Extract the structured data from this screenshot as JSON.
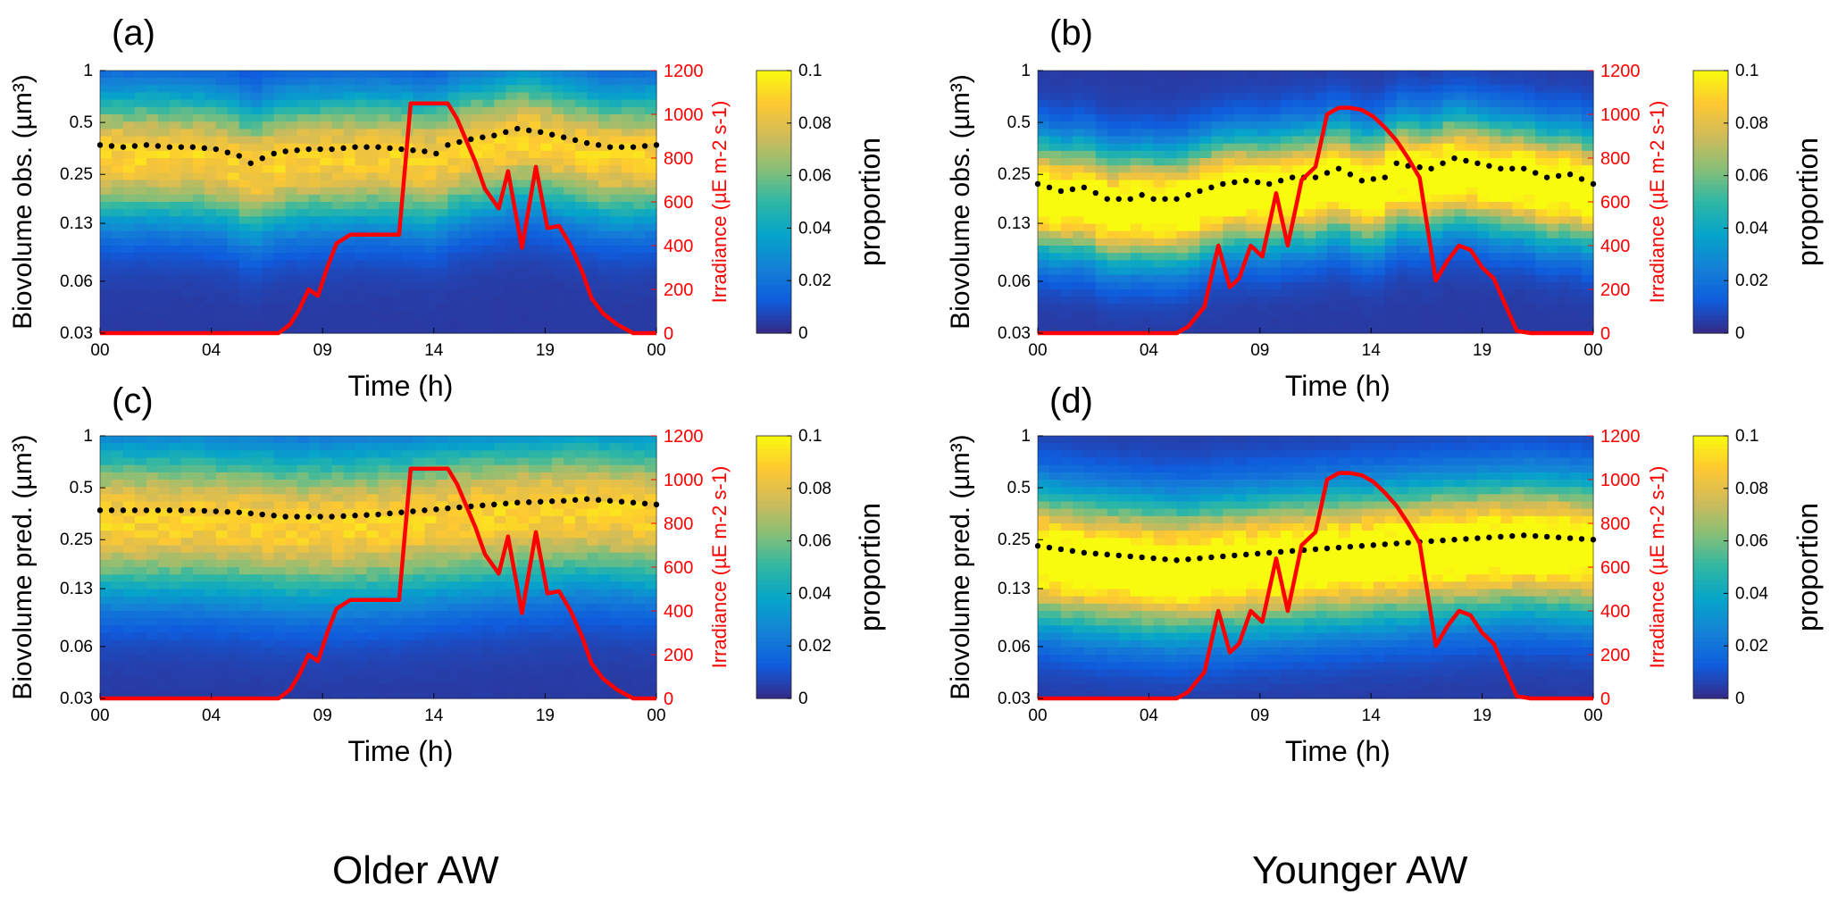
{
  "figure": {
    "left_caption": "Older AW",
    "right_caption": "Younger AW"
  },
  "colors": {
    "irradiance": "#ff0000",
    "dots": "#000000",
    "text": "#000000",
    "colormap": [
      "#352a87",
      "#0f5cdd",
      "#1481d6",
      "#06a4ca",
      "#2eb7a4",
      "#87bf77",
      "#d1bb59",
      "#fec832",
      "#f9fb0e"
    ]
  },
  "chart_data": [
    {
      "panel": "(a)",
      "type": "heatmap",
      "ylabel": "Biovolume obs. (µm³)",
      "xlabel": "Time (h)",
      "x_ticks": [
        "00",
        "04",
        "09",
        "14",
        "19",
        "00"
      ],
      "y_ticks": [
        "1",
        "0.5",
        "0.25",
        "0.13",
        "0.06",
        "0.03"
      ],
      "y2label": "Irradiance (µE m-2 s-1)",
      "y2_ticks": [
        "1200",
        "1000",
        "800",
        "600",
        "400",
        "200",
        "0"
      ],
      "y2lim": [
        0,
        1200
      ],
      "colorbar_label": "proportion",
      "colorbar_ticks": [
        "0.1",
        "0.08",
        "0.06",
        "0.04",
        "0.02",
        "0"
      ],
      "colorbar_range": [
        0,
        0.1
      ],
      "peak_value": 0.085,
      "band_width": 0.26,
      "mean_biovolume": [
        [
          0,
          0.37
        ],
        [
          1,
          0.36
        ],
        [
          2,
          0.37
        ],
        [
          3,
          0.36
        ],
        [
          4,
          0.36
        ],
        [
          5,
          0.35
        ],
        [
          6,
          0.32
        ],
        [
          6.5,
          0.29
        ],
        [
          7,
          0.31
        ],
        [
          7.5,
          0.33
        ],
        [
          8,
          0.34
        ],
        [
          9,
          0.35
        ],
        [
          10,
          0.35
        ],
        [
          11,
          0.36
        ],
        [
          12,
          0.36
        ],
        [
          13,
          0.35
        ],
        [
          14,
          0.34
        ],
        [
          14.5,
          0.33
        ],
        [
          15,
          0.37
        ],
        [
          16,
          0.4
        ],
        [
          17,
          0.42
        ],
        [
          18,
          0.46
        ],
        [
          19,
          0.44
        ],
        [
          20,
          0.41
        ],
        [
          21,
          0.38
        ],
        [
          22,
          0.36
        ],
        [
          23,
          0.36
        ],
        [
          24,
          0.37
        ]
      ],
      "irradiance": [
        [
          0,
          0
        ],
        [
          7,
          0
        ],
        [
          7.7,
          0
        ],
        [
          8.2,
          40
        ],
        [
          8.6,
          110
        ],
        [
          9,
          200
        ],
        [
          9.4,
          170
        ],
        [
          9.8,
          300
        ],
        [
          10.2,
          410
        ],
        [
          10.8,
          450
        ],
        [
          11.5,
          450
        ],
        [
          12.2,
          450
        ],
        [
          12.9,
          450
        ],
        [
          13.4,
          1050
        ],
        [
          14.2,
          1050
        ],
        [
          15,
          1050
        ],
        [
          15.4,
          980
        ],
        [
          15.8,
          880
        ],
        [
          16.2,
          780
        ],
        [
          16.6,
          660
        ],
        [
          17.2,
          570
        ],
        [
          17.6,
          740
        ],
        [
          18.2,
          390
        ],
        [
          18.8,
          760
        ],
        [
          19.3,
          480
        ],
        [
          19.8,
          490
        ],
        [
          20.3,
          400
        ],
        [
          20.8,
          280
        ],
        [
          21.2,
          160
        ],
        [
          21.7,
          90
        ],
        [
          22.3,
          40
        ],
        [
          23,
          0
        ],
        [
          24,
          0
        ]
      ]
    },
    {
      "panel": "(b)",
      "type": "heatmap",
      "ylabel": "Biovolume obs. (µm³)",
      "xlabel": "Time (h)",
      "x_ticks": [
        "00",
        "04",
        "09",
        "14",
        "19",
        "00"
      ],
      "y_ticks": [
        "1",
        "0.5",
        "0.25",
        "0.13",
        "0.06",
        "0.03"
      ],
      "y2label": "Irradiance (µE m-2 s-1)",
      "y2_ticks": [
        "1200",
        "1000",
        "800",
        "600",
        "400",
        "200",
        "0"
      ],
      "y2lim": [
        0,
        1200
      ],
      "colorbar_label": "proportion",
      "colorbar_ticks": [
        "0.1",
        "0.08",
        "0.06",
        "0.04",
        "0.02",
        "0"
      ],
      "colorbar_range": [
        0,
        0.1
      ],
      "peak_value": 0.11,
      "band_width": 0.22,
      "mean_biovolume": [
        [
          0,
          0.22
        ],
        [
          1,
          0.2
        ],
        [
          2,
          0.21
        ],
        [
          3,
          0.18
        ],
        [
          4,
          0.18
        ],
        [
          4.5,
          0.19
        ],
        [
          5,
          0.18
        ],
        [
          6,
          0.18
        ],
        [
          7,
          0.2
        ],
        [
          8,
          0.22
        ],
        [
          9,
          0.23
        ],
        [
          10,
          0.22
        ],
        [
          11,
          0.24
        ],
        [
          12,
          0.24
        ],
        [
          13,
          0.27
        ],
        [
          14,
          0.23
        ],
        [
          15,
          0.24
        ],
        [
          15.5,
          0.29
        ],
        [
          16,
          0.28
        ],
        [
          17,
          0.27
        ],
        [
          18,
          0.31
        ],
        [
          19,
          0.29
        ],
        [
          20,
          0.27
        ],
        [
          21,
          0.27
        ],
        [
          22,
          0.24
        ],
        [
          23,
          0.25
        ],
        [
          24,
          0.22
        ]
      ],
      "irradiance": [
        [
          0,
          0
        ],
        [
          6,
          0
        ],
        [
          6.5,
          30
        ],
        [
          7.2,
          120
        ],
        [
          7.8,
          400
        ],
        [
          8.3,
          210
        ],
        [
          8.7,
          250
        ],
        [
          9.2,
          400
        ],
        [
          9.7,
          350
        ],
        [
          10.3,
          640
        ],
        [
          10.8,
          400
        ],
        [
          11.4,
          700
        ],
        [
          12,
          760
        ],
        [
          12.5,
          1000
        ],
        [
          13,
          1030
        ],
        [
          13.5,
          1030
        ],
        [
          14,
          1020
        ],
        [
          14.5,
          990
        ],
        [
          15,
          940
        ],
        [
          15.5,
          880
        ],
        [
          16,
          800
        ],
        [
          16.5,
          710
        ],
        [
          17.2,
          240
        ],
        [
          17.7,
          330
        ],
        [
          18.2,
          400
        ],
        [
          18.7,
          380
        ],
        [
          19.2,
          300
        ],
        [
          19.7,
          250
        ],
        [
          20.2,
          130
        ],
        [
          20.7,
          10
        ],
        [
          21.3,
          0
        ],
        [
          24,
          0
        ]
      ]
    },
    {
      "panel": "(c)",
      "type": "heatmap",
      "ylabel": "Biovolume pred. (µm³)",
      "xlabel": "Time (h)",
      "x_ticks": [
        "00",
        "04",
        "09",
        "14",
        "19",
        "00"
      ],
      "y_ticks": [
        "1",
        "0.5",
        "0.25",
        "0.13",
        "0.06",
        "0.03"
      ],
      "y2label": "Irradiance (µE m-2 s-1)",
      "y2_ticks": [
        "1200",
        "1000",
        "800",
        "600",
        "400",
        "200",
        "0"
      ],
      "y2lim": [
        0,
        1200
      ],
      "colorbar_label": "proportion",
      "colorbar_ticks": [
        "0.1",
        "0.08",
        "0.06",
        "0.04",
        "0.02",
        "0"
      ],
      "colorbar_range": [
        0,
        0.1
      ],
      "peak_value": 0.085,
      "band_width": 0.3,
      "mean_biovolume": [
        [
          0,
          0.37
        ],
        [
          2,
          0.37
        ],
        [
          4,
          0.37
        ],
        [
          6,
          0.36
        ],
        [
          7,
          0.35
        ],
        [
          8,
          0.34
        ],
        [
          10,
          0.34
        ],
        [
          12,
          0.35
        ],
        [
          14,
          0.37
        ],
        [
          16,
          0.39
        ],
        [
          18,
          0.41
        ],
        [
          20,
          0.42
        ],
        [
          21,
          0.43
        ],
        [
          22,
          0.42
        ],
        [
          23,
          0.41
        ],
        [
          24,
          0.4
        ]
      ],
      "irradiance": [
        [
          0,
          0
        ],
        [
          7,
          0
        ],
        [
          7.7,
          0
        ],
        [
          8.2,
          40
        ],
        [
          8.6,
          110
        ],
        [
          9,
          200
        ],
        [
          9.4,
          170
        ],
        [
          9.8,
          300
        ],
        [
          10.2,
          410
        ],
        [
          10.8,
          450
        ],
        [
          11.5,
          450
        ],
        [
          12.2,
          450
        ],
        [
          12.9,
          450
        ],
        [
          13.4,
          1050
        ],
        [
          14.2,
          1050
        ],
        [
          15,
          1050
        ],
        [
          15.4,
          980
        ],
        [
          15.8,
          880
        ],
        [
          16.2,
          780
        ],
        [
          16.6,
          660
        ],
        [
          17.2,
          570
        ],
        [
          17.6,
          740
        ],
        [
          18.2,
          390
        ],
        [
          18.8,
          760
        ],
        [
          19.3,
          480
        ],
        [
          19.8,
          490
        ],
        [
          20.3,
          400
        ],
        [
          20.8,
          280
        ],
        [
          21.2,
          160
        ],
        [
          21.7,
          90
        ],
        [
          22.3,
          40
        ],
        [
          23,
          0
        ],
        [
          24,
          0
        ]
      ]
    },
    {
      "panel": "(d)",
      "type": "heatmap",
      "ylabel": "Biovolume pred. (µm³)",
      "xlabel": "Time (h)",
      "x_ticks": [
        "00",
        "04",
        "09",
        "14",
        "19",
        "00"
      ],
      "y_ticks": [
        "1",
        "0.5",
        "0.25",
        "0.13",
        "0.06",
        "0.03"
      ],
      "y2label": "Irradiance (µE m-2 s-1)",
      "y2_ticks": [
        "1200",
        "1000",
        "800",
        "600",
        "400",
        "200",
        "0"
      ],
      "y2lim": [
        0,
        1200
      ],
      "colorbar_label": "proportion",
      "colorbar_ticks": [
        "0.1",
        "0.08",
        "0.06",
        "0.04",
        "0.02",
        "0"
      ],
      "colorbar_range": [
        0,
        0.1
      ],
      "peak_value": 0.11,
      "band_width": 0.26,
      "mean_biovolume": [
        [
          0,
          0.23
        ],
        [
          2,
          0.21
        ],
        [
          4,
          0.2
        ],
        [
          5,
          0.195
        ],
        [
          6,
          0.19
        ],
        [
          7,
          0.195
        ],
        [
          8,
          0.2
        ],
        [
          10,
          0.21
        ],
        [
          12,
          0.22
        ],
        [
          14,
          0.23
        ],
        [
          16,
          0.24
        ],
        [
          18,
          0.25
        ],
        [
          20,
          0.26
        ],
        [
          21,
          0.265
        ],
        [
          22,
          0.26
        ],
        [
          23,
          0.255
        ],
        [
          24,
          0.25
        ]
      ],
      "irradiance": [
        [
          0,
          0
        ],
        [
          6,
          0
        ],
        [
          6.5,
          30
        ],
        [
          7.2,
          120
        ],
        [
          7.8,
          400
        ],
        [
          8.3,
          210
        ],
        [
          8.7,
          250
        ],
        [
          9.2,
          400
        ],
        [
          9.7,
          350
        ],
        [
          10.3,
          640
        ],
        [
          10.8,
          400
        ],
        [
          11.4,
          700
        ],
        [
          12,
          760
        ],
        [
          12.5,
          1000
        ],
        [
          13,
          1030
        ],
        [
          13.5,
          1030
        ],
        [
          14,
          1020
        ],
        [
          14.5,
          990
        ],
        [
          15,
          940
        ],
        [
          15.5,
          880
        ],
        [
          16,
          800
        ],
        [
          16.5,
          710
        ],
        [
          17.2,
          240
        ],
        [
          17.7,
          330
        ],
        [
          18.2,
          400
        ],
        [
          18.7,
          380
        ],
        [
          19.2,
          300
        ],
        [
          19.7,
          250
        ],
        [
          20.2,
          130
        ],
        [
          20.7,
          10
        ],
        [
          21.3,
          0
        ],
        [
          24,
          0
        ]
      ]
    }
  ]
}
